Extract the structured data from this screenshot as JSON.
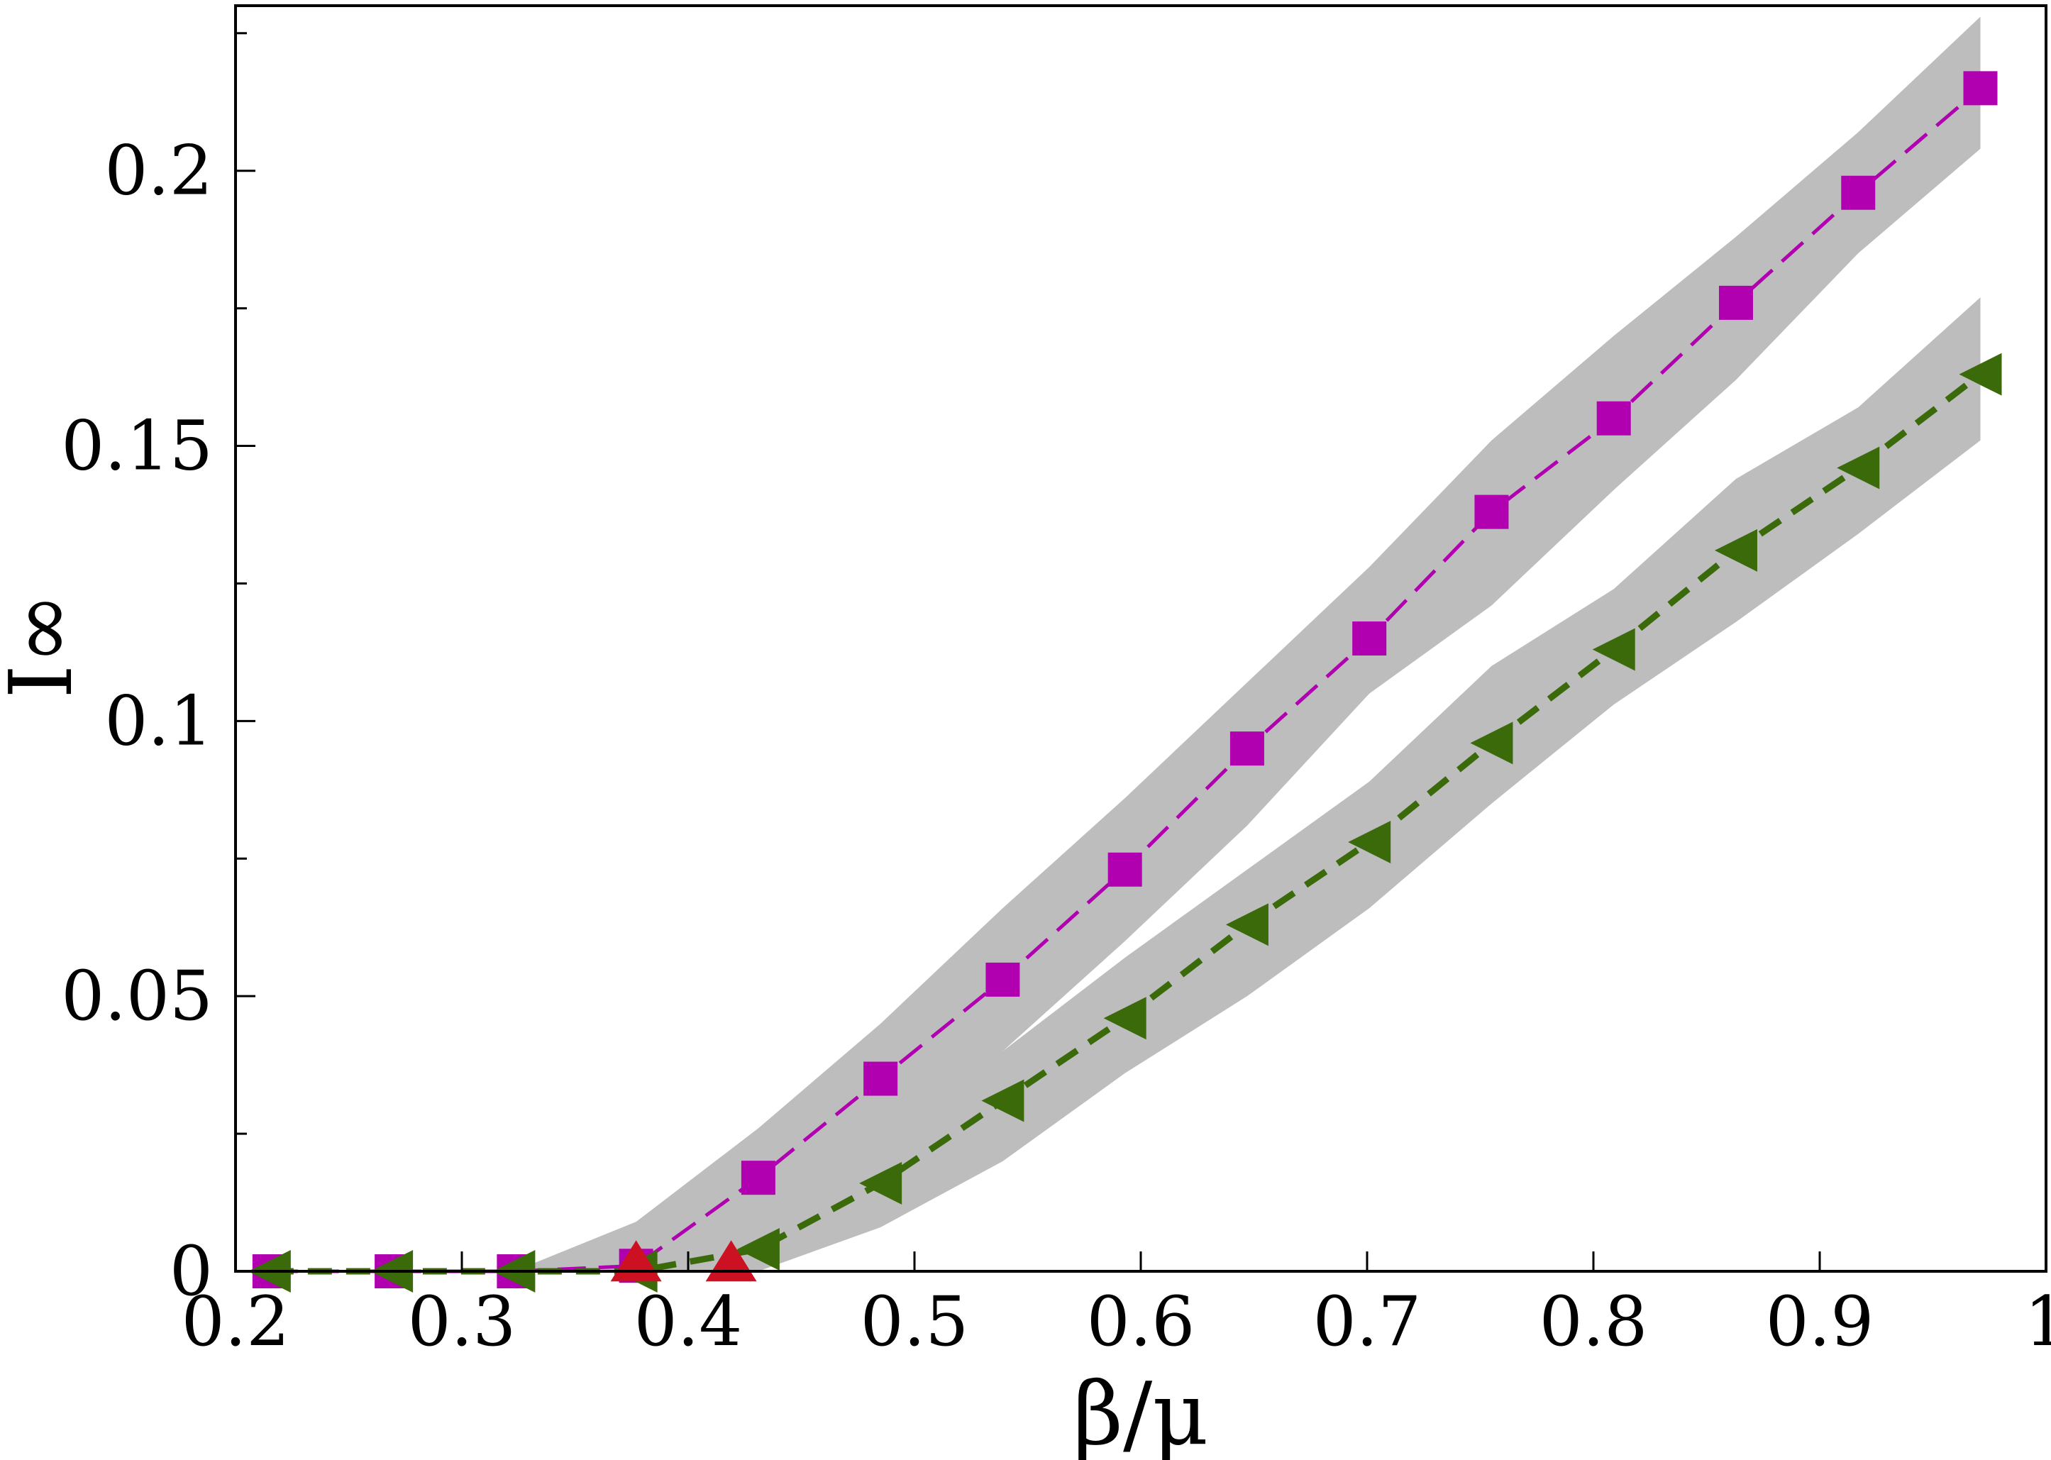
{
  "chart_data": {
    "type": "line",
    "title": "",
    "xlabel": "β/μ",
    "ylabel": "I∞",
    "xlim": [
      0.2,
      1.0
    ],
    "ylim": [
      0,
      0.23
    ],
    "x_ticks": [
      0.2,
      0.3,
      0.4,
      0.5,
      0.6,
      0.7,
      0.8,
      0.9,
      1.0
    ],
    "x_tick_labels": [
      "0.2",
      "0.3",
      "0.4",
      "0.5",
      "0.6",
      "0.7",
      "0.8",
      "0.9",
      "1"
    ],
    "y_ticks": [
      0,
      0.05,
      0.1,
      0.15,
      0.2
    ],
    "y_tick_labels": [
      "0",
      "0.05",
      "0.1",
      "0.15",
      "0.2"
    ],
    "y_minor_ticks": [
      0.025,
      0.075,
      0.125,
      0.175,
      0.225
    ],
    "grid": false,
    "legend": "none",
    "series": [
      {
        "marker": "square",
        "color": "#b000b0",
        "line_style": "dashed",
        "x": [
          0.215,
          0.269,
          0.323,
          0.377,
          0.431,
          0.485,
          0.539,
          0.593,
          0.647,
          0.701,
          0.755,
          0.809,
          0.863,
          0.917,
          0.971
        ],
        "y": [
          0,
          0,
          0,
          0.001,
          0.017,
          0.035,
          0.053,
          0.073,
          0.095,
          0.115,
          0.138,
          0.155,
          0.176,
          0.196,
          0.215
        ],
        "band_lower": [
          0,
          0,
          0,
          0,
          0.004,
          0.02,
          0.04,
          0.06,
          0.081,
          0.105,
          0.121,
          0.142,
          0.162,
          0.185,
          0.204
        ],
        "band_upper": [
          0,
          0,
          0,
          0.009,
          0.026,
          0.045,
          0.066,
          0.086,
          0.107,
          0.128,
          0.151,
          0.17,
          0.188,
          0.207,
          0.228
        ]
      },
      {
        "marker": "triangle-left",
        "color": "#3a6a0a",
        "line_style": "dashed",
        "x": [
          0.215,
          0.269,
          0.323,
          0.377,
          0.431,
          0.485,
          0.539,
          0.593,
          0.647,
          0.701,
          0.755,
          0.809,
          0.863,
          0.917,
          0.971
        ],
        "y": [
          0,
          0,
          0,
          0,
          0.004,
          0.016,
          0.031,
          0.046,
          0.063,
          0.078,
          0.096,
          0.113,
          0.131,
          0.146,
          0.163
        ],
        "band_lower": [
          0,
          0,
          0,
          0,
          0,
          0.008,
          0.02,
          0.036,
          0.05,
          0.066,
          0.085,
          0.103,
          0.118,
          0.134,
          0.151
        ],
        "band_upper": [
          0,
          0,
          0,
          0,
          0.008,
          0.025,
          0.04,
          0.057,
          0.073,
          0.089,
          0.11,
          0.124,
          0.144,
          0.157,
          0.177
        ]
      }
    ],
    "annotations": [
      {
        "marker": "triangle-up",
        "color": "#cc1122",
        "x": 0.377,
        "y": 0.001
      },
      {
        "marker": "triangle-up",
        "color": "#cc1122",
        "x": 0.419,
        "y": 0.001
      }
    ]
  }
}
